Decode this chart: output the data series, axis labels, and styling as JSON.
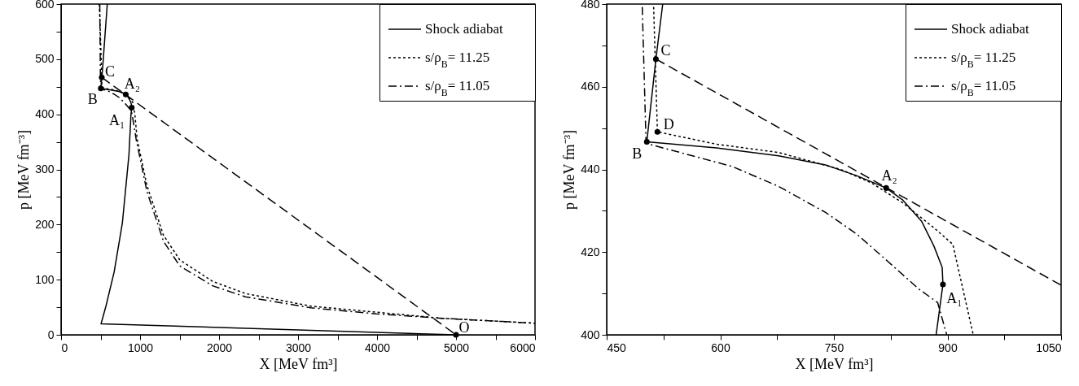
{
  "chart_data": [
    {
      "type": "line",
      "xlabel": "X [MeV fm³]",
      "ylabel": "p [MeV fm⁻³]",
      "xlim": [
        0,
        6000
      ],
      "ylim": [
        0,
        600
      ],
      "xticks": [
        0,
        {
          "value": 500,
          "label": null
        },
        1000,
        {
          "value": 1500,
          "label": null
        },
        2000,
        {
          "value": 2500,
          "label": null
        },
        3000,
        {
          "value": 3500,
          "label": null
        },
        4000,
        {
          "value": 4500,
          "label": null
        },
        5000,
        {
          "value": 5500,
          "label": null
        },
        6000
      ],
      "yticks": [
        0,
        {
          "value": 50,
          "label": null
        },
        100,
        {
          "value": 150,
          "label": null
        },
        200,
        {
          "value": 250,
          "label": null
        },
        300,
        {
          "value": 350,
          "label": null
        },
        400,
        {
          "value": 450,
          "label": null
        },
        500,
        {
          "value": 550,
          "label": null
        },
        600
      ],
      "legend": "top right",
      "series": [
        {
          "name": "Shock adiabat",
          "color": "#000000",
          "line_style": "solid",
          "x": [
            5000,
            506,
            568,
            672,
            776,
            859,
            885,
            894,
            893,
            882,
            866,
            841,
            819,
            780,
            739,
            677,
            595,
            503,
            515,
            524,
            585
          ],
          "values": [
            0,
            20,
            52,
            114,
            203,
            326,
            400,
            412,
            416,
            422,
            427,
            433,
            436,
            439,
            441,
            443,
            445,
            447,
            467,
            480,
            600
          ]
        },
        {
          "name": "s/ρ$_{B}$= 11.25",
          "color": "#000000",
          "line_style": "dotted",
          "x": [
            485,
            512,
            517,
            595,
            677,
            759,
            800,
            841,
            882,
            907,
            934,
            963,
            1087,
            1295,
            1502,
            1917,
            2332,
            3162,
            3992,
            4822,
            6000
          ],
          "values": [
            600,
            479,
            449,
            446,
            444,
            440,
            437,
            432,
            426,
            422,
            400,
            355,
            271,
            181,
            136,
            97,
            75,
            52,
            41,
            30,
            21
          ]
        },
        {
          "name": "s/ρ$_{B}$= 11.05",
          "color": "#000000",
          "line_style": "dashdot",
          "x": [
            490,
            497,
            502,
            555,
            616,
            677,
            739,
            780,
            821,
            862,
            887,
            899,
            950,
            1087,
            1295,
            1502,
            1917,
            2332,
            3162,
            3992,
            4822,
            6000
          ],
          "values": [
            600,
            479,
            446,
            444,
            441,
            436,
            430,
            424,
            418,
            411,
            408,
            400,
            355,
            260,
            170,
            125,
            89,
            69,
            49,
            38,
            30,
            21
          ]
        },
        {
          "color": "#000000",
          "line_style": "dashed",
          "x": [
            515,
            5000
          ],
          "values": [
            467,
            0
          ]
        },
        {
          "type": "scatter",
          "color": "#000000",
          "marker": "circle",
          "x": [
            515,
            503,
            819,
            894,
            5000
          ],
          "values": [
            467,
            447,
            436,
            412,
            0
          ]
        }
      ],
      "annotations": [
        {
          "text": "C",
          "x": 515,
          "y": 467
        },
        {
          "text": "B",
          "x": 503,
          "y": 447
        },
        {
          "text": "A₂",
          "x": 819,
          "y": 436
        },
        {
          "text": "A₁",
          "x": 894,
          "y": 412
        },
        {
          "text": "O",
          "x": 5000,
          "y": 0
        }
      ]
    },
    {
      "type": "line",
      "xlabel": "X [MeV fm³]",
      "ylabel": "p [MeV fm⁻³]",
      "xlim": [
        450,
        1050
      ],
      "ylim": [
        400,
        480
      ],
      "xticks": [
        450,
        {
          "value": 525,
          "label": null
        },
        600,
        {
          "value": 675,
          "label": null
        },
        750,
        {
          "value": 825,
          "label": null
        },
        900,
        {
          "value": 975,
          "label": null
        },
        1050
      ],
      "yticks": [
        400,
        {
          "value": 410,
          "label": null
        },
        420,
        {
          "value": 430,
          "label": null
        },
        440,
        {
          "value": 450,
          "label": null
        },
        460,
        {
          "value": 470,
          "label": null
        },
        480
      ],
      "legend": "top right",
      "series": [
        {
          "name": "Shock adiabat",
          "color": "#000000",
          "line_style": "solid",
          "x": [
            885,
            894,
            893,
            882,
            866,
            841,
            819,
            780,
            739,
            677,
            595,
            503,
            515,
            524
          ],
          "values": [
            400,
            412.2,
            416.3,
            421.5,
            427.4,
            432.6,
            435.5,
            438.5,
            441.1,
            443.3,
            445.2,
            446.7,
            466.7,
            480
          ]
        },
        {
          "name": "s/ρ$_{B}$= 11.25",
          "color": "#000000",
          "line_style": "dotted",
          "x": [
            512,
            517,
            595,
            677,
            759,
            800,
            841,
            882,
            907,
            934
          ],
          "values": [
            479.3,
            449.1,
            446.1,
            444.1,
            440,
            436.7,
            431.9,
            425.9,
            421.9,
            400
          ]
        },
        {
          "name": "s/ρ$_{B}$= 11.05",
          "color": "#000000",
          "line_style": "dashdot",
          "x": [
            497,
            502,
            555,
            616,
            677,
            739,
            780,
            821,
            862,
            887,
            899
          ],
          "values": [
            479.3,
            446.3,
            443.7,
            440.7,
            435.9,
            429.6,
            424.4,
            417.8,
            411.1,
            407.8,
            400
          ]
        },
        {
          "color": "#000000",
          "line_style": "dashed",
          "x": [
            515,
            1050
          ],
          "values": [
            466.7,
            412
          ]
        },
        {
          "type": "scatter",
          "color": "#000000",
          "marker": "circle",
          "x": [
            515,
            517,
            503,
            819,
            894
          ],
          "values": [
            466.7,
            449.1,
            446.7,
            435.5,
            412.2
          ]
        }
      ],
      "annotations": [
        {
          "text": "C",
          "x": 515,
          "y": 466.7
        },
        {
          "text": "D",
          "x": 517,
          "y": 449.1
        },
        {
          "text": "B",
          "x": 503,
          "y": 446.7
        },
        {
          "text": "A₂",
          "x": 819,
          "y": 435.5
        },
        {
          "text": "A₁",
          "x": 894,
          "y": 412.2
        }
      ]
    }
  ]
}
